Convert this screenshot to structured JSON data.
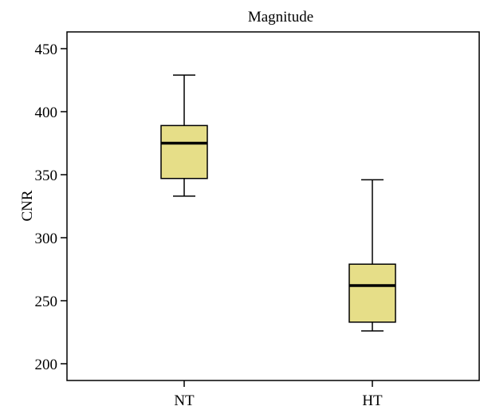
{
  "chart_data": {
    "type": "boxplot",
    "title": "Magnitude",
    "xlabel": "",
    "ylabel": "CNR",
    "ylim": [
      190,
      465
    ],
    "yticks": [
      200,
      250,
      300,
      350,
      400,
      450
    ],
    "grid": false,
    "colors": {
      "box_fill": "#e6de88",
      "stroke": "#000000"
    },
    "categories": [
      "NT",
      "HT"
    ],
    "boxes": [
      {
        "category": "NT",
        "whisker_low": 333,
        "q1": 347,
        "median": 375,
        "q3": 389,
        "whisker_high": 429
      },
      {
        "category": "HT",
        "whisker_low": 226,
        "q1": 233,
        "median": 262,
        "q3": 279,
        "whisker_high": 346
      }
    ]
  }
}
